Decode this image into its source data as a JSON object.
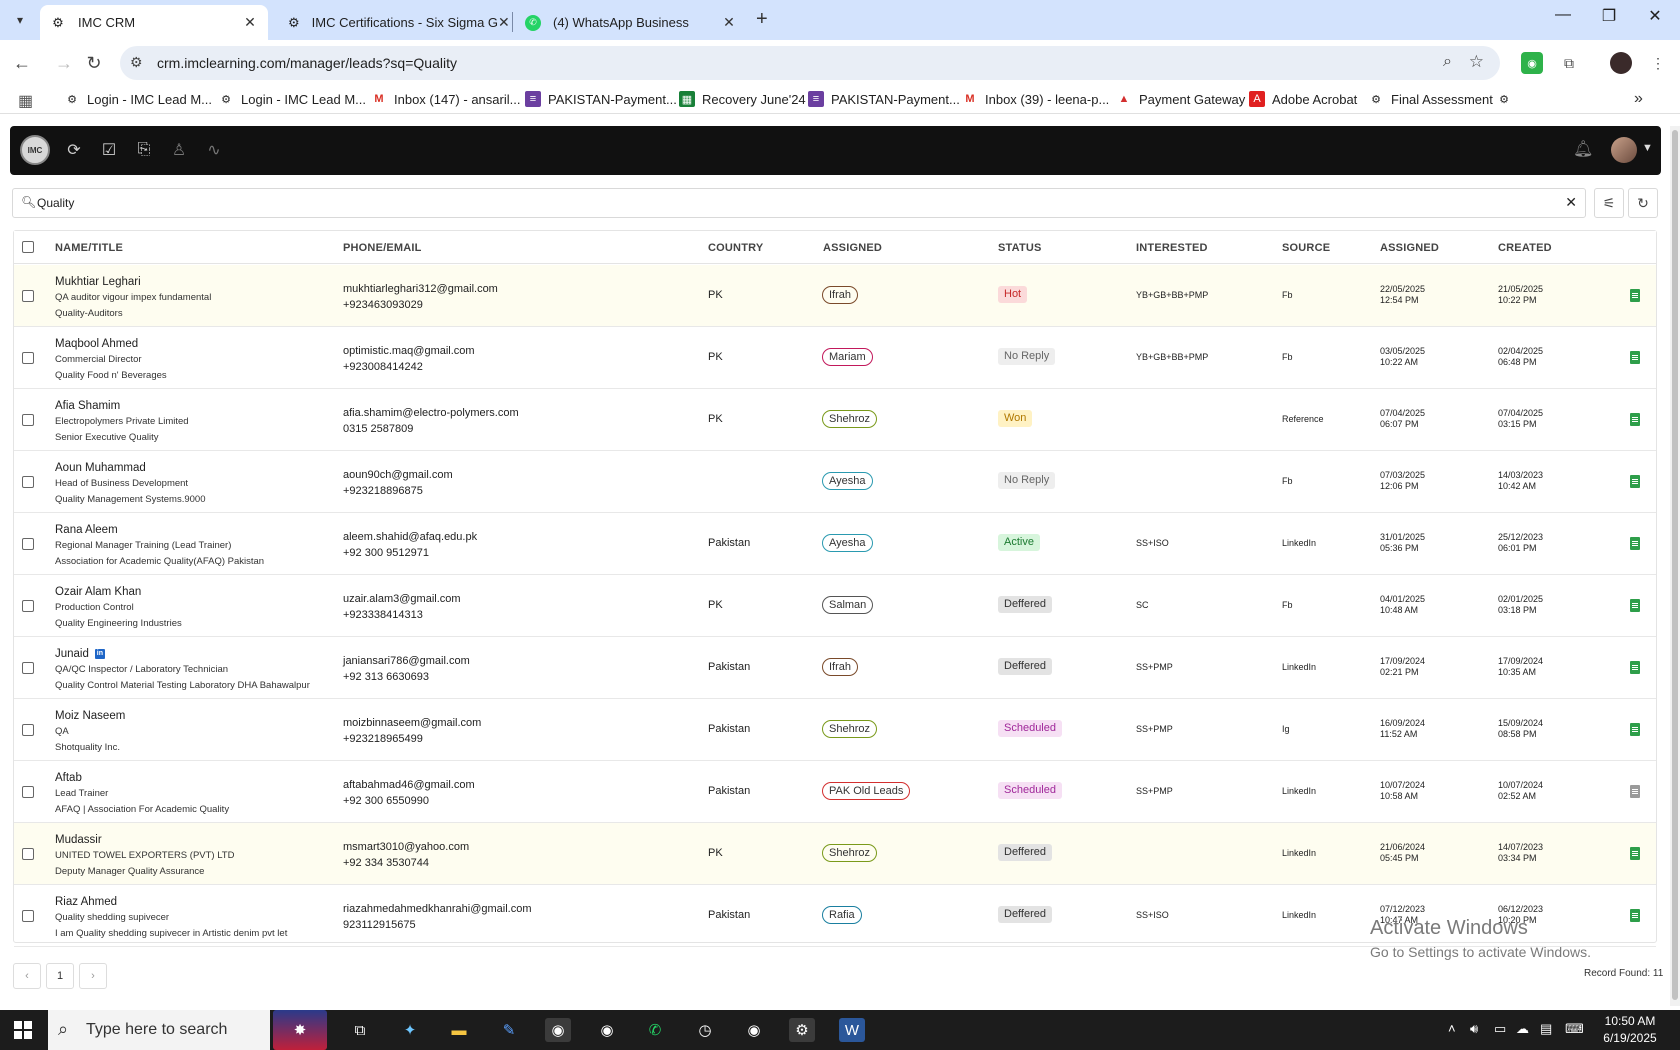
{
  "browser": {
    "tabs": [
      {
        "title": "IMC CRM",
        "close": "✕"
      },
      {
        "title": "IMC Certifications - Six Sigma G",
        "close": "✕"
      },
      {
        "title": "(4) WhatsApp Business",
        "close": "✕"
      }
    ],
    "url": "crm.imclearning.com/manager/leads?sq=Quality",
    "bookmarks": [
      "Login - IMC Lead M...",
      "Login - IMC Lead M...",
      "Inbox (147) - ansaril...",
      "PAKISTAN-Payment...",
      "Recovery June'24",
      "PAKISTAN-Payment...",
      "Inbox (39) - leena-p...",
      "Payment Gateway",
      "Adobe Acrobat",
      "Final Assessment"
    ]
  },
  "search": {
    "value": "Quality"
  },
  "columns": [
    "NAME/TITLE",
    "PHONE/EMAIL",
    "COUNTRY",
    "ASSIGNED",
    "STATUS",
    "INTERESTED",
    "SOURCE",
    "ASSIGNED",
    "CREATED"
  ],
  "leads": [
    {
      "name": "Mukhtiar Leghari",
      "line2": "QA auditor vigour impex fundamental",
      "line3": "Quality-Auditors",
      "email": "mukhtiarleghari312@gmail.com",
      "phone": "+923463093029",
      "country": "PK",
      "assigned": "Ifrah",
      "status": "Hot",
      "interested": "YB+GB+BB+PMP",
      "source": "Fb",
      "assigned_date": "22/05/2025",
      "assigned_time": "12:54 PM",
      "created_date": "21/05/2025",
      "created_time": "10:22 PM",
      "highlight": true,
      "linkedin": false
    },
    {
      "name": "Maqbool Ahmed",
      "line2": "Commercial Director",
      "line3": "Quality Food n' Beverages",
      "email": "optimistic.maq@gmail.com",
      "phone": "+923008414242",
      "country": "PK",
      "assigned": "Mariam",
      "status": "No Reply",
      "interested": "YB+GB+BB+PMP",
      "source": "Fb",
      "assigned_date": "03/05/2025",
      "assigned_time": "10:22 AM",
      "created_date": "02/04/2025",
      "created_time": "06:48 PM",
      "highlight": false,
      "linkedin": false
    },
    {
      "name": "Afia Shamim",
      "line2": "Electropolymers Private Limited",
      "line3": "Senior Executive Quality",
      "email": "afia.shamim@electro-polymers.com",
      "phone": "0315 2587809",
      "country": "PK",
      "assigned": "Shehroz",
      "status": "Won",
      "interested": "",
      "source": "Reference",
      "assigned_date": "07/04/2025",
      "assigned_time": "06:07 PM",
      "created_date": "07/04/2025",
      "created_time": "03:15 PM",
      "highlight": false,
      "linkedin": false
    },
    {
      "name": "Aoun Muhammad",
      "line2": "Head of Business Development",
      "line3": "Quality Management Systems.9000",
      "email": "aoun90ch@gmail.com",
      "phone": "+923218896875",
      "country": "",
      "assigned": "Ayesha",
      "status": "No Reply",
      "interested": "",
      "source": "Fb",
      "assigned_date": "07/03/2025",
      "assigned_time": "12:06 PM",
      "created_date": "14/03/2023",
      "created_time": "10:42 AM",
      "highlight": false,
      "linkedin": false
    },
    {
      "name": "Rana Aleem",
      "line2": "Regional Manager Training (Lead Trainer)",
      "line3": "Association for Academic Quality(AFAQ) Pakistan",
      "email": "aleem.shahid@afaq.edu.pk",
      "phone": "+92 300 9512971",
      "country": "Pakistan",
      "assigned": "Ayesha",
      "status": "Active",
      "interested": "SS+ISO",
      "source": "LinkedIn",
      "assigned_date": "31/01/2025",
      "assigned_time": "05:36 PM",
      "created_date": "25/12/2023",
      "created_time": "06:01 PM",
      "highlight": false,
      "linkedin": false
    },
    {
      "name": "Ozair Alam Khan",
      "line2": "Production Control",
      "line3": "Quality Engineering Industries",
      "email": "uzair.alam3@gmail.com",
      "phone": "+923338414313",
      "country": "PK",
      "assigned": "Salman",
      "status": "Deffered",
      "interested": "SC",
      "source": "Fb",
      "assigned_date": "04/01/2025",
      "assigned_time": "10:48 AM",
      "created_date": "02/01/2025",
      "created_time": "03:18 PM",
      "highlight": false,
      "linkedin": false
    },
    {
      "name": "Junaid",
      "line2": "QA/QC Inspector / Laboratory Technician",
      "line3": "Quality Control Material Testing Laboratory DHA Bahawalpur",
      "email": "janiansari786@gmail.com",
      "phone": "+92 313 6630693",
      "country": "Pakistan",
      "assigned": "Ifrah",
      "status": "Deffered",
      "interested": "SS+PMP",
      "source": "LinkedIn",
      "assigned_date": "17/09/2024",
      "assigned_time": "02:21 PM",
      "created_date": "17/09/2024",
      "created_time": "10:35 AM",
      "highlight": false,
      "linkedin": true
    },
    {
      "name": "Moiz Naseem",
      "line2": "QA",
      "line3": "Shotquality Inc.",
      "email": "moizbinnaseem@gmail.com",
      "phone": "+923218965499",
      "country": "Pakistan",
      "assigned": "Shehroz",
      "status": "Scheduled",
      "interested": "SS+PMP",
      "source": "Ig",
      "assigned_date": "16/09/2024",
      "assigned_time": "11:52 AM",
      "created_date": "15/09/2024",
      "created_time": "08:58 PM",
      "highlight": false,
      "linkedin": false
    },
    {
      "name": "Aftab",
      "line2": "Lead Trainer",
      "line3": "AFAQ | Association For Academic Quality",
      "email": "aftabahmad46@gmail.com",
      "phone": "+92 300 6550990",
      "country": "Pakistan",
      "assigned": "PAK Old Leads",
      "status": "Scheduled",
      "interested": "SS+PMP",
      "source": "LinkedIn",
      "assigned_date": "10/07/2024",
      "assigned_time": "10:58 AM",
      "created_date": "10/07/2024",
      "created_time": "02:52 AM",
      "highlight": false,
      "linkedin": false
    },
    {
      "name": "Mudassir",
      "line2": "UNITED TOWEL EXPORTERS (PVT) LTD",
      "line3": "Deputy Manager Quality Assurance",
      "email": "msmart3010@yahoo.com",
      "phone": "+92 334 3530744",
      "country": "PK",
      "assigned": "Shehroz",
      "status": "Deffered",
      "interested": "",
      "source": "LinkedIn",
      "assigned_date": "21/06/2024",
      "assigned_time": "05:45 PM",
      "created_date": "14/07/2023",
      "created_time": "03:34 PM",
      "highlight": true,
      "linkedin": false
    },
    {
      "name": "Riaz Ahmed",
      "line2": "Quality shedding supivecer",
      "line3": "I am Quality shedding supivecer in Artistic denim pvt let",
      "email": "riazahmedahmedkhanrahi@gmail.com",
      "phone": "923112915675",
      "country": "Pakistan",
      "assigned": "Rafia",
      "status": "Deffered",
      "interested": "SS+ISO",
      "source": "LinkedIn",
      "assigned_date": "07/12/2023",
      "assigned_time": "10:47 AM",
      "created_date": "06/12/2023",
      "created_time": "10:20 PM",
      "highlight": false,
      "linkedin": false
    }
  ],
  "pagination": {
    "prev": "‹",
    "page": "1",
    "next": "›"
  },
  "record_found": "Record Found: 11",
  "watermark": {
    "line1": "Activate Windows",
    "line2": "Go to Settings to activate Windows."
  },
  "taskbar": {
    "search_placeholder": "Type here to search",
    "time": "10:50 AM",
    "date": "6/19/2025"
  },
  "colors": {
    "appbar": "#111111",
    "status": {
      "Hot": {
        "bg": "#fbdada",
        "fg": "#c62828"
      },
      "No Reply": {
        "bg": "#eeeeee",
        "fg": "#666666"
      },
      "Won": {
        "bg": "#fff2c4",
        "fg": "#b07800"
      },
      "Active": {
        "bg": "#d7f5dc",
        "fg": "#1b7a30"
      },
      "Deffered": {
        "bg": "#e3e3e3",
        "fg": "#333333"
      },
      "Scheduled": {
        "bg": "#f6e0f4",
        "fg": "#a0289a"
      }
    },
    "assignee_border": {
      "Ifrah": "#7a4a2a",
      "Mariam": "#c2185b",
      "Shehroz": "#7a9a1a",
      "Ayesha": "#2a9ab0",
      "Salman": "#555555",
      "PAK Old Leads": "#d32f2f",
      "Rafia": "#1a7fa0"
    }
  }
}
